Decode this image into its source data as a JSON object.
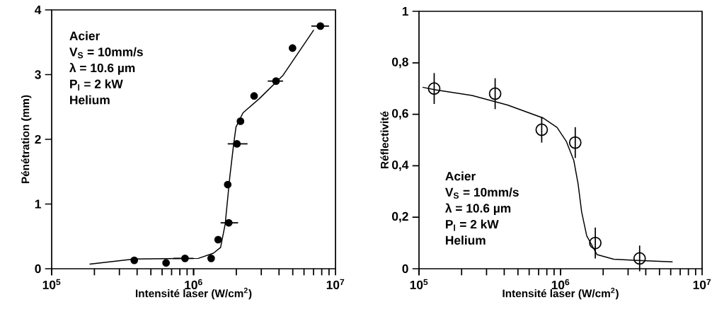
{
  "chart_data": [
    {
      "type": "scatter",
      "xlabel": "Intensité laser (W/cm$^{2}$)",
      "ylabel": "Pénétration (mm)",
      "log": "x",
      "xlim": [
        100000,
        10000000
      ],
      "ylim": [
        0,
        4
      ],
      "xticks": [
        {
          "value": 100000,
          "label": "10$^{5}$"
        },
        {
          "value": 1000000,
          "label": "10$^{6}$"
        },
        {
          "value": 10000000,
          "label": "10$^{7}$"
        }
      ],
      "yticks": [
        0,
        1,
        2,
        3,
        4
      ],
      "annotations": [
        "Acier",
        "V$_{S}$ = 10mm/s",
        "λ = 10.6 µm",
        "P$_{l}$ = 2 kW",
        "Helium"
      ],
      "series": [
        {
          "marker": "circle",
          "color": "#000000",
          "x": [
            382000,
            640000,
            870000,
            1330000,
            1490000,
            1740000,
            1770000,
            2020000,
            2140000,
            2670000,
            3810000,
            4980000,
            7830000
          ],
          "values": [
            0.13,
            0.09,
            0.16,
            0.16,
            0.45,
            1.3,
            0.71,
            1.93,
            2.28,
            2.67,
            2.9,
            3.41,
            3.75
          ],
          "xerrors": [
            null,
            null,
            [
              720000,
              1000000
            ],
            null,
            null,
            null,
            [
              1550000,
              2060000
            ],
            [
              1740000,
              2400000
            ],
            null,
            null,
            [
              3330000,
              4270000
            ],
            null,
            [
              6760000,
              9000000
            ]
          ]
        },
        {
          "type": "line",
          "marker": "none",
          "color": "#000000",
          "x": [
            185000,
            382000,
            1080000,
            1380000,
            1550000,
            1670000,
            1800000,
            1910000,
            1990000,
            2230000,
            2910000,
            4270000,
            7030000
          ],
          "values": [
            0.07,
            0.15,
            0.16,
            0.24,
            0.33,
            0.69,
            1.42,
            1.9,
            2.19,
            2.41,
            2.63,
            2.99,
            3.69
          ]
        }
      ]
    },
    {
      "type": "scatter",
      "xlabel": "Intensité laser (W/cm$^{2}$)",
      "ylabel": "Réflectivité",
      "log": "x",
      "xlim": [
        100000,
        10000000
      ],
      "ylim": [
        0,
        1
      ],
      "xticks": [
        {
          "value": 100000,
          "label": "10$^{5}$"
        },
        {
          "value": 1000000,
          "label": "10$^{6}$"
        },
        {
          "value": 10000000,
          "label": "10$^{7}$"
        }
      ],
      "yticks": [
        0,
        {
          "value": 0.2,
          "label": "0,2"
        },
        {
          "value": 0.4,
          "label": "0,4"
        },
        {
          "value": 0.6,
          "label": "0,6"
        },
        {
          "value": 0.8,
          "label": "0,8"
        },
        1
      ],
      "annotations": [
        "Acier",
        "V$_{S}$ = 10mm/s",
        "λ = 10.6 µm",
        "P$_{l}$ = 2 kW",
        "Helium"
      ],
      "series": [
        {
          "marker": "circle",
          "color": "#000000",
          "x": [
            128000,
            345000,
            736000,
            1270000,
            1760000,
            3620000
          ],
          "values": [
            0.7,
            0.68,
            0.54,
            0.49,
            0.1,
            0.04
          ],
          "errors": [
            0.06,
            0.06,
            0.05,
            0.06,
            0.06,
            0.05
          ]
        },
        {
          "type": "line",
          "marker": "none",
          "color": "#000000",
          "x": [
            106000,
            128000,
            237000,
            422000,
            750000,
            944000,
            1100000,
            1240000,
            1330000,
            1410000,
            1530000,
            1810000,
            2370000,
            3480000,
            6190000
          ],
          "values": [
            0.705,
            0.696,
            0.673,
            0.636,
            0.586,
            0.549,
            0.494,
            0.421,
            0.33,
            0.22,
            0.128,
            0.055,
            0.037,
            0.032,
            0.027
          ]
        }
      ]
    }
  ]
}
